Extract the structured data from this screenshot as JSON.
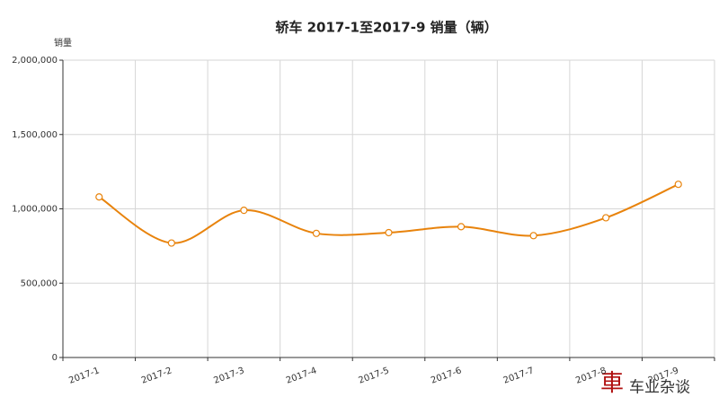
{
  "chart_data": {
    "type": "line",
    "title": "轿车 2017-1至2017-9 销量（辆）",
    "y_label": "销量",
    "categories": [
      "2017-1",
      "2017-2",
      "2017-3",
      "2017-4",
      "2017-5",
      "2017-6",
      "2017-7",
      "2017-8",
      "2017-9"
    ],
    "values": [
      1080000,
      770000,
      990000,
      835000,
      840000,
      880000,
      820000,
      940000,
      1165000
    ],
    "color": "#e8830c",
    "ylim": [
      0,
      2000000
    ],
    "yticks": [
      0,
      {
        "value": 500000,
        "label": "500,000"
      },
      {
        "value": 1000000,
        "label": "1,000,000"
      },
      {
        "value": 1500000,
        "label": "1,500,000"
      },
      {
        "value": 2000000,
        "label": "2,000,000"
      }
    ],
    "grid": true,
    "watermark_logo": "車",
    "watermark": "车业杂谈"
  }
}
